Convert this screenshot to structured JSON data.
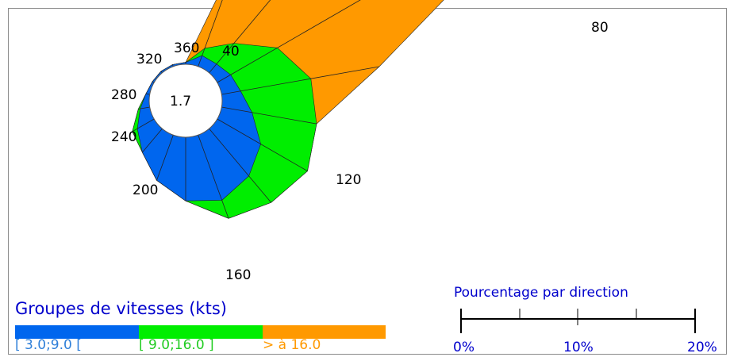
{
  "chart_data": {
    "type": "wind-rose",
    "calm_value": "1.7",
    "direction_labels": [
      "360",
      "40",
      "80",
      "120",
      "160",
      "200",
      "240",
      "280",
      "320"
    ],
    "directions_deg": [
      0,
      20,
      40,
      60,
      80,
      100,
      120,
      140,
      160,
      180,
      200,
      220,
      240,
      260,
      280,
      300,
      320,
      340
    ],
    "series": [
      {
        "name": "[ 3.0;9.0 [",
        "color": "#0066ee",
        "cumulative_percent": [
          0.1,
          0.6,
          0.6,
          0.8,
          1.0,
          1.6,
          2.6,
          3.2,
          3.6,
          3.3,
          2.5,
          1.6,
          1.0,
          0.5,
          0.2,
          0.1,
          0.1,
          0.1
        ]
      },
      {
        "name": "[ 9.0;16.0 ]",
        "color": "#00ee00",
        "cumulative_percent": [
          0.1,
          1.0,
          2.0,
          3.6,
          4.7,
          5.0,
          5.4,
          5.0,
          4.6,
          3.3,
          2.5,
          1.6,
          1.3,
          0.6,
          0.2,
          0.1,
          0.1,
          0.1
        ]
      },
      {
        "name": "> à 16.0",
        "color": "#ff9900",
        "cumulative_percent": [
          0.1,
          6.4,
          21.2,
          19.9,
          8.3,
          5.0,
          5.4,
          5.0,
          4.6,
          3.3,
          2.5,
          1.6,
          1.3,
          0.6,
          0.2,
          0.1,
          0.1,
          0.1
        ]
      }
    ]
  },
  "legend": {
    "title": "Groupes de vitesses (kts)",
    "items": [
      {
        "label": "[ 3.0;9.0 [",
        "color": "#0066ee",
        "text_color": "#2e7fd9"
      },
      {
        "label": "[ 9.0;16.0 ]",
        "color": "#00ee00",
        "text_color": "#22cc22"
      },
      {
        "label": "> à 16.0",
        "color": "#ff9900",
        "text_color": "#ff9900"
      }
    ]
  },
  "scale": {
    "title": "Pourcentage par direction",
    "labels": [
      "0%",
      "10%",
      "20%"
    ],
    "max_percent": 20
  }
}
